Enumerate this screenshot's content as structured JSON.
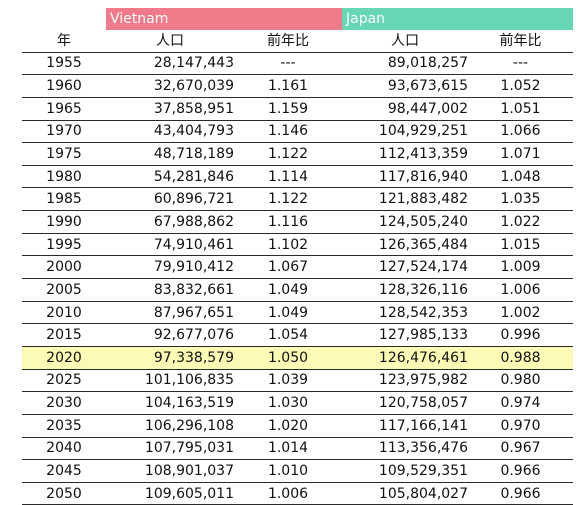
{
  "colors": {
    "vietnam": "#f07a8a",
    "japan": "#66d6b4",
    "highlight": "#fbfbb6"
  },
  "groups": {
    "vietnam": "Vietnam",
    "japan": "Japan"
  },
  "headers": {
    "year": "年",
    "vietnam_population": "人口",
    "vietnam_ratio": "前年比",
    "japan_population": "人口",
    "japan_ratio": "前年比"
  },
  "highlight_year": "2020",
  "rows": [
    {
      "year": "1955",
      "vietnam_population": "28,147,443",
      "vietnam_ratio": "---",
      "japan_population": "89,018,257",
      "japan_ratio": "---"
    },
    {
      "year": "1960",
      "vietnam_population": "32,670,039",
      "vietnam_ratio": "1.161",
      "japan_population": "93,673,615",
      "japan_ratio": "1.052"
    },
    {
      "year": "1965",
      "vietnam_population": "37,858,951",
      "vietnam_ratio": "1.159",
      "japan_population": "98,447,002",
      "japan_ratio": "1.051"
    },
    {
      "year": "1970",
      "vietnam_population": "43,404,793",
      "vietnam_ratio": "1.146",
      "japan_population": "104,929,251",
      "japan_ratio": "1.066"
    },
    {
      "year": "1975",
      "vietnam_population": "48,718,189",
      "vietnam_ratio": "1.122",
      "japan_population": "112,413,359",
      "japan_ratio": "1.071"
    },
    {
      "year": "1980",
      "vietnam_population": "54,281,846",
      "vietnam_ratio": "1.114",
      "japan_population": "117,816,940",
      "japan_ratio": "1.048"
    },
    {
      "year": "1985",
      "vietnam_population": "60,896,721",
      "vietnam_ratio": "1.122",
      "japan_population": "121,883,482",
      "japan_ratio": "1.035"
    },
    {
      "year": "1990",
      "vietnam_population": "67,988,862",
      "vietnam_ratio": "1.116",
      "japan_population": "124,505,240",
      "japan_ratio": "1.022"
    },
    {
      "year": "1995",
      "vietnam_population": "74,910,461",
      "vietnam_ratio": "1.102",
      "japan_population": "126,365,484",
      "japan_ratio": "1.015"
    },
    {
      "year": "2000",
      "vietnam_population": "79,910,412",
      "vietnam_ratio": "1.067",
      "japan_population": "127,524,174",
      "japan_ratio": "1.009"
    },
    {
      "year": "2005",
      "vietnam_population": "83,832,661",
      "vietnam_ratio": "1.049",
      "japan_population": "128,326,116",
      "japan_ratio": "1.006"
    },
    {
      "year": "2010",
      "vietnam_population": "87,967,651",
      "vietnam_ratio": "1.049",
      "japan_population": "128,542,353",
      "japan_ratio": "1.002"
    },
    {
      "year": "2015",
      "vietnam_population": "92,677,076",
      "vietnam_ratio": "1.054",
      "japan_population": "127,985,133",
      "japan_ratio": "0.996"
    },
    {
      "year": "2020",
      "vietnam_population": "97,338,579",
      "vietnam_ratio": "1.050",
      "japan_population": "126,476,461",
      "japan_ratio": "0.988"
    },
    {
      "year": "2025",
      "vietnam_population": "101,106,835",
      "vietnam_ratio": "1.039",
      "japan_population": "123,975,982",
      "japan_ratio": "0.980"
    },
    {
      "year": "2030",
      "vietnam_population": "104,163,519",
      "vietnam_ratio": "1.030",
      "japan_population": "120,758,057",
      "japan_ratio": "0.974"
    },
    {
      "year": "2035",
      "vietnam_population": "106,296,108",
      "vietnam_ratio": "1.020",
      "japan_population": "117,166,141",
      "japan_ratio": "0.970"
    },
    {
      "year": "2040",
      "vietnam_population": "107,795,031",
      "vietnam_ratio": "1.014",
      "japan_population": "113,356,476",
      "japan_ratio": "0.967"
    },
    {
      "year": "2045",
      "vietnam_population": "108,901,037",
      "vietnam_ratio": "1.010",
      "japan_population": "109,529,351",
      "japan_ratio": "0.966"
    },
    {
      "year": "2050",
      "vietnam_population": "109,605,011",
      "vietnam_ratio": "1.006",
      "japan_population": "105,804,027",
      "japan_ratio": "0.966"
    }
  ]
}
